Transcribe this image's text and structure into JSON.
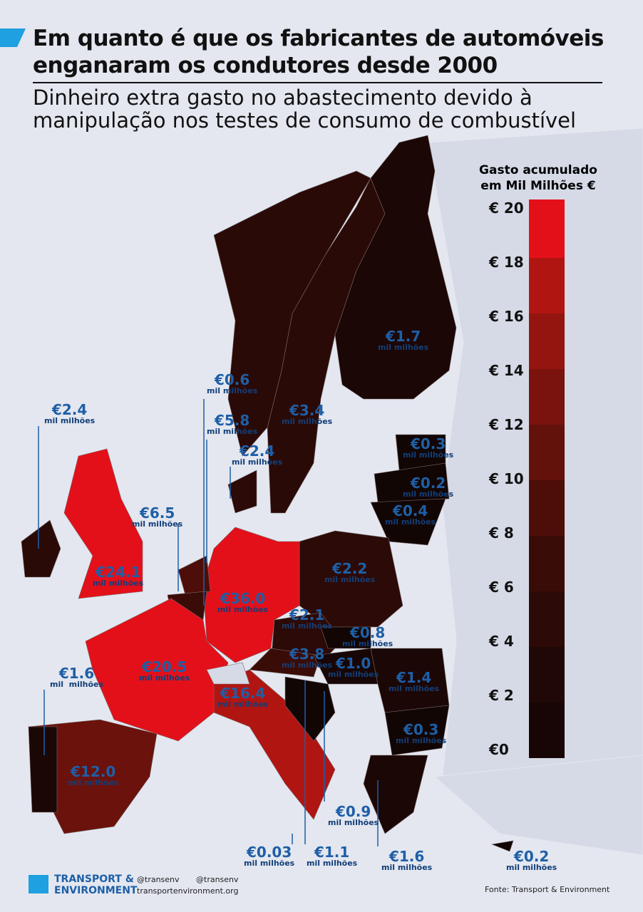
{
  "header": {
    "title_line1": "Em quanto é que os fabricantes de automóveis",
    "title_line2": "enganaram os condutores desde 2000",
    "subtitle_line1": "Dinheiro extra gasto no abastecimento devido à",
    "subtitle_line2": "manipulação nos testes de consumo de combustível"
  },
  "legend": {
    "title_line1": "Gasto acumulado",
    "title_line2": "em Mil Milhões €",
    "ticks": [
      "€ 20",
      "€ 18",
      "€ 16",
      "€ 14",
      "€ 12",
      "€ 10",
      "€ 8",
      "€ 6",
      "€ 4",
      "€ 2",
      "€0"
    ],
    "band_colors": [
      "#170605",
      "#200806",
      "#2c0a07",
      "#3a0c08",
      "#4d0e09",
      "#63110b",
      "#7a130d",
      "#94150f",
      "#b11512",
      "#e3101a"
    ]
  },
  "labels": [
    {
      "value": "€2.4",
      "unit": "mil milhões"
    },
    {
      "value": "€0.6",
      "unit": "mil milhões"
    },
    {
      "value": "€5.8",
      "unit": "mil milhões"
    },
    {
      "value": "€2.4",
      "unit": "mil milhões"
    },
    {
      "value": "€6.5",
      "unit": "mil milhões"
    },
    {
      "value": "€24.1",
      "unit": "mil milhões"
    },
    {
      "value": "€36.0",
      "unit": "mil milhões"
    },
    {
      "value": "€20.5",
      "unit": "mil milhões"
    },
    {
      "value": "€1.6",
      "unit": "mil  milhões"
    },
    {
      "value": "€16.4",
      "unit": "mil milhões"
    },
    {
      "value": "€12.0",
      "unit": "mil milhões"
    },
    {
      "value": "€3.4",
      "unit": "mil milhões"
    },
    {
      "value": "€1.7",
      "unit": "mil milhões"
    },
    {
      "value": "€0.3",
      "unit": "mil milhões"
    },
    {
      "value": "€0.2",
      "unit": "mil milhões"
    },
    {
      "value": "€0.4",
      "unit": "mil milhões"
    },
    {
      "value": "€2.2",
      "unit": "mil milhões"
    },
    {
      "value": "€2.1",
      "unit": "mil milhões"
    },
    {
      "value": "€0.8",
      "unit": "mil milhões"
    },
    {
      "value": "€3.8",
      "unit": "mil milhões"
    },
    {
      "value": "€1.0",
      "unit": "mil milhões"
    },
    {
      "value": "€1.4",
      "unit": "mil milhões"
    },
    {
      "value": "€0.3",
      "unit": "mil milhões"
    },
    {
      "value": "€0.9",
      "unit": "mil milhões"
    },
    {
      "value": "€0.03",
      "unit": "mil milhões"
    },
    {
      "value": "€1.1",
      "unit": "mil milhões"
    },
    {
      "value": "€1.6",
      "unit": "mil milhões"
    },
    {
      "value": "€0.2",
      "unit": "mil milhões"
    }
  ],
  "footer": {
    "logo_line1": "TRANSPORT &",
    "logo_line2": "ENVIRONMENT",
    "twitter": "@transenv",
    "facebook": "@transenv",
    "website": "transportenvironment.org",
    "source": "Fonte: Transport & Environment"
  }
}
